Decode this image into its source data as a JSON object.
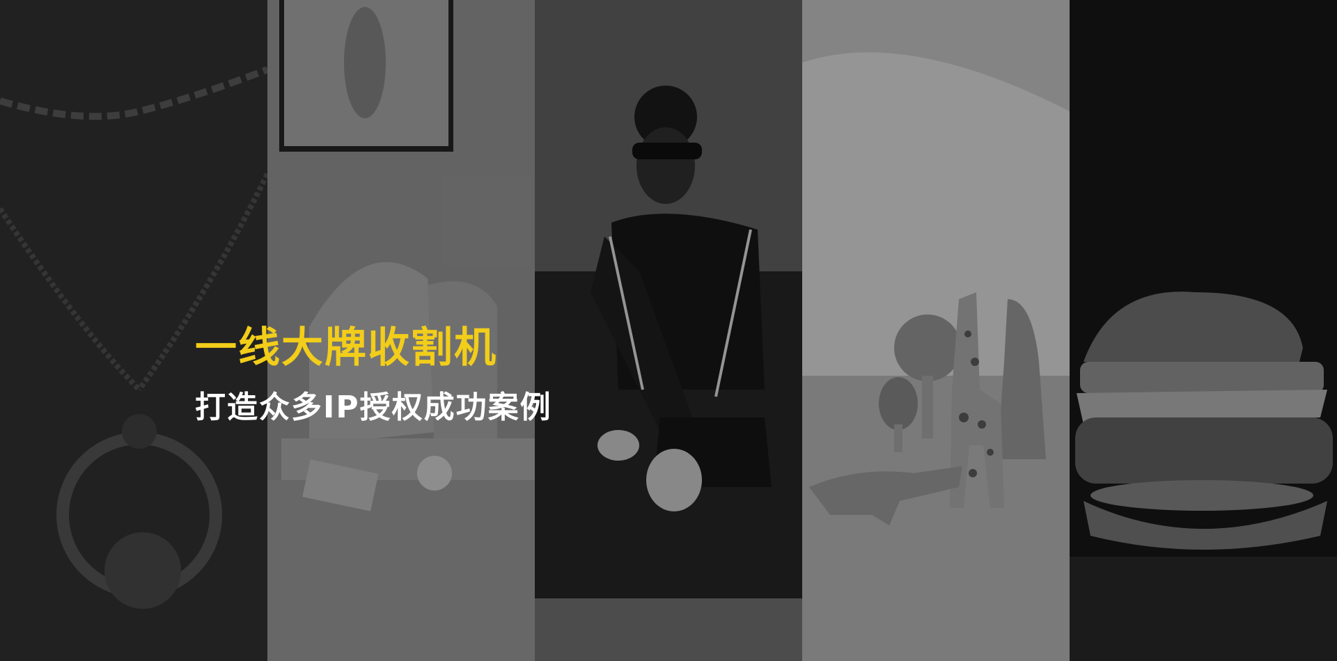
{
  "hero": {
    "title": "一线大牌收割机",
    "subtitle": "打造众多IP授权成功案例"
  },
  "colors": {
    "title": "#f2cd1a",
    "subtitle": "#ffffff"
  },
  "panels": [
    {
      "subject": "necklace"
    },
    {
      "subject": "living-room-interior"
    },
    {
      "subject": "woman-in-sunglasses-on-sofa"
    },
    {
      "subject": "wooden-toy-animals"
    },
    {
      "subject": "burger"
    }
  ]
}
